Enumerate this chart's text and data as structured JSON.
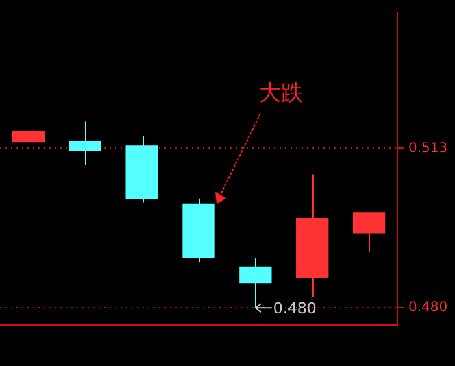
{
  "chart_data": {
    "type": "candlestick",
    "categories": [
      null,
      null,
      null,
      null,
      null,
      null,
      null
    ],
    "ohlc": [
      [
        0.5144,
        0.5165,
        0.5144,
        0.5165
      ],
      [
        0.5144,
        0.5185,
        0.5095,
        0.5125
      ],
      [
        0.5135,
        0.5155,
        0.5018,
        0.5026
      ],
      [
        0.5015,
        0.5026,
        0.4895,
        0.4904
      ],
      [
        0.4885,
        0.4904,
        0.48,
        0.4852
      ],
      [
        0.4863,
        0.5076,
        0.4822,
        0.4985
      ],
      [
        0.4955,
        0.4996,
        0.4915,
        0.4996
      ]
    ],
    "colors": [
      "#ff3333",
      "#54ffff",
      "#54ffff",
      "#54ffff",
      "#54ffff",
      "#ff3333",
      "#ff3333"
    ],
    "ylim": [
      0.4765,
      0.5411
    ],
    "yticks": [
      0.513,
      {
        "value": 0.48,
        "label": "0.480"
      }
    ],
    "tick_labels": "y",
    "grid": "y",
    "legend": false,
    "annotations": [
      "大跌",
      "0.480"
    ]
  }
}
